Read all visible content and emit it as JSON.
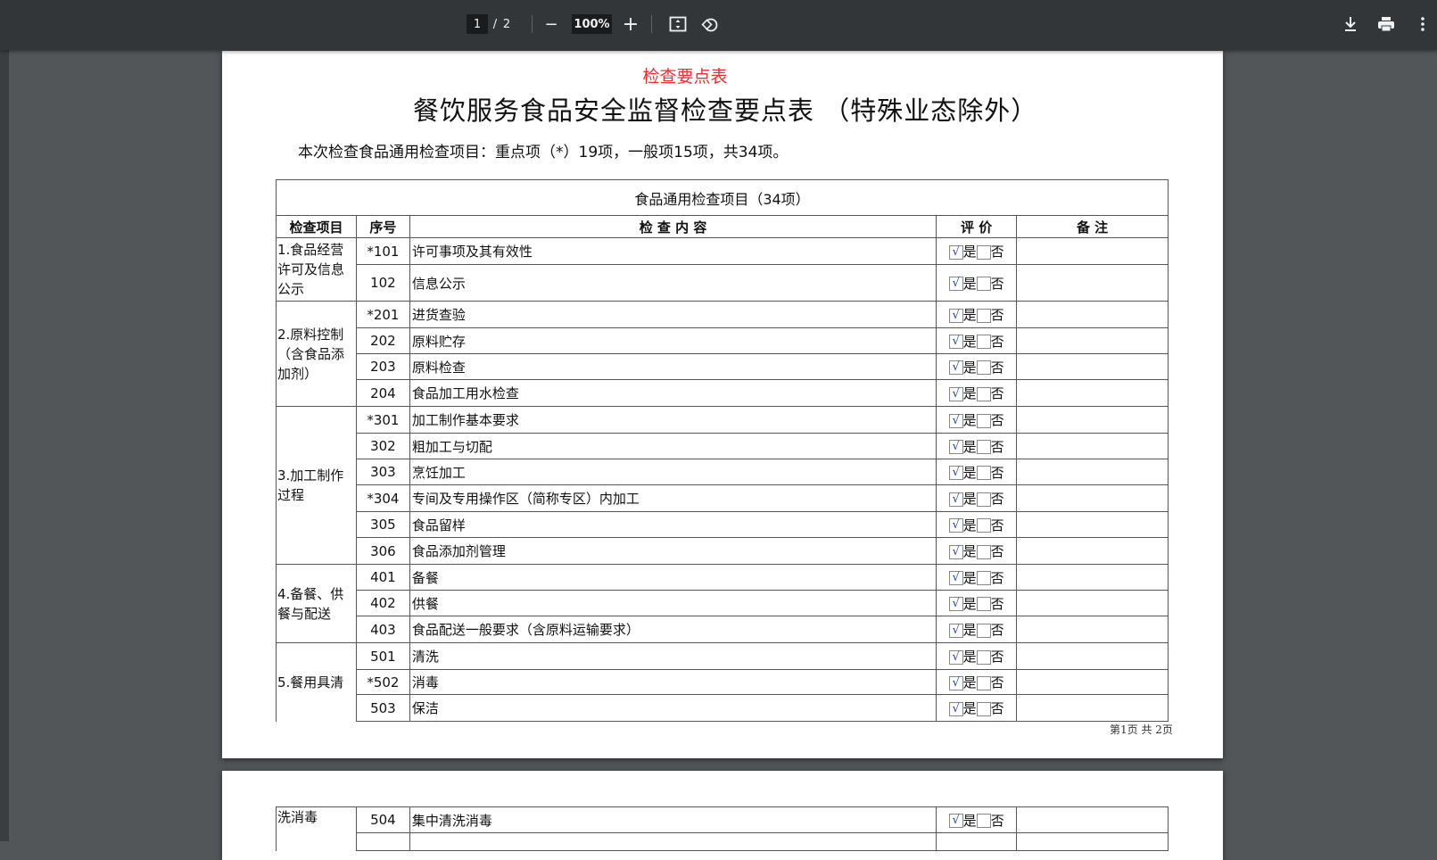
{
  "toolbar": {
    "page_current": "1",
    "page_sep": "/",
    "page_total": "2",
    "zoom": "100%"
  },
  "doc": {
    "red_heading": "检查要点表",
    "title": "餐饮服务食品安全监督检查要点表 （特殊业态除外）",
    "summary": "本次检查食品通用检查项目：重点项（*）19项，一般项15项，共34项。",
    "table_caption": "食品通用检查项目（34项）",
    "headers": [
      "检查项目",
      "序号",
      "检 查 内 容",
      "评 价",
      "备 注"
    ],
    "yes_label": "是",
    "no_label": "否",
    "check_mark": "√",
    "groups": [
      {
        "name": "1.食品经营许可及信息公示",
        "rows": [
          [
            "*101",
            "许可事项及其有效性"
          ],
          [
            "102",
            "信息公示"
          ]
        ]
      },
      {
        "name": "2.原料控制（含食品添加剂）",
        "rows": [
          [
            "*201",
            "进货查验"
          ],
          [
            "202",
            "原料贮存"
          ],
          [
            "203",
            "原料检查"
          ],
          [
            "204",
            "食品加工用水检查"
          ]
        ]
      },
      {
        "name": "3.加工制作过程",
        "rows": [
          [
            "*301",
            "加工制作基本要求"
          ],
          [
            "302",
            "粗加工与切配"
          ],
          [
            "303",
            "烹饪加工"
          ],
          [
            "*304",
            "专间及专用操作区（简称专区）内加工"
          ],
          [
            "305",
            "食品留样"
          ],
          [
            "306",
            "食品添加剂管理"
          ]
        ]
      },
      {
        "name": "4.备餐、供餐与配送",
        "rows": [
          [
            "401",
            "备餐"
          ],
          [
            "402",
            "供餐"
          ],
          [
            "403",
            "食品配送一般要求（含原料运输要求）"
          ]
        ]
      },
      {
        "name": "5.餐用具清",
        "rows": [
          [
            "501",
            "清洗"
          ],
          [
            "*502",
            "消毒"
          ],
          [
            "503",
            "保洁"
          ]
        ]
      }
    ],
    "footer": "第1页 共 2页",
    "page2": {
      "group_cont": "洗消毒",
      "row": [
        "504",
        "集中清洗消毒"
      ]
    }
  }
}
